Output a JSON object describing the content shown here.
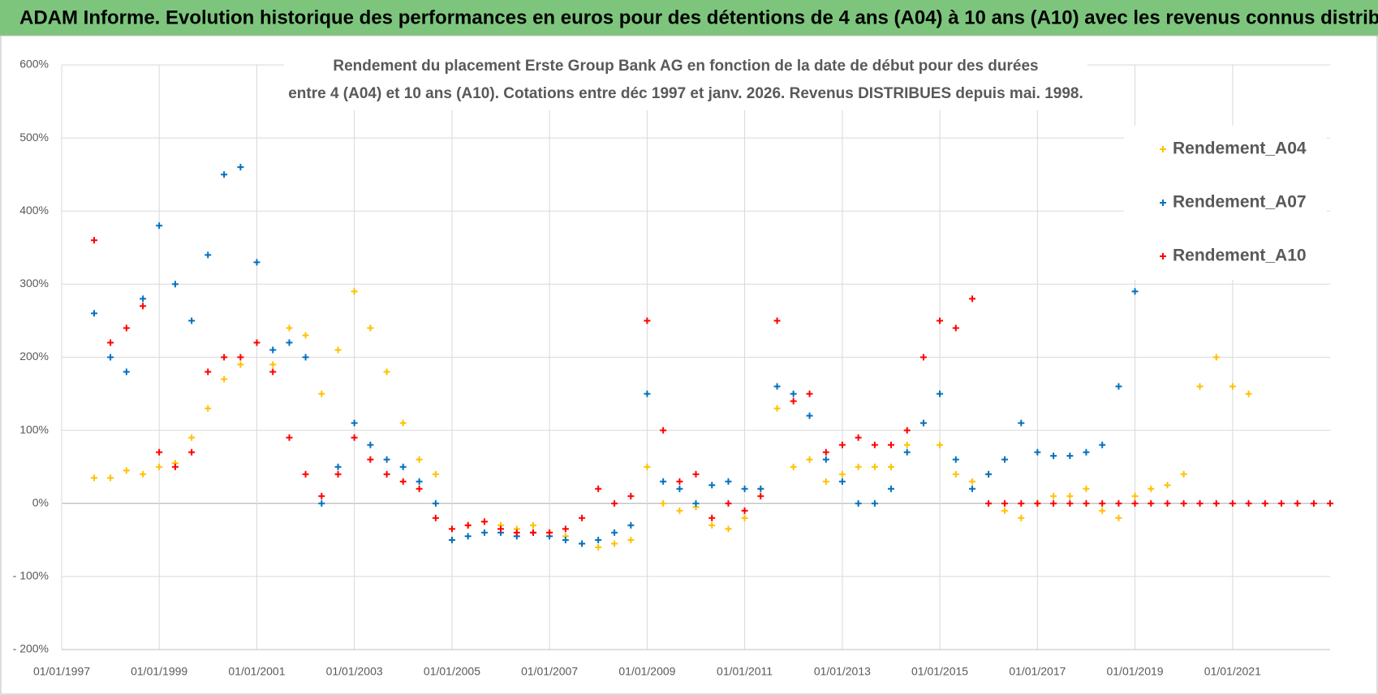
{
  "header": {
    "title": "ADAM Informe. Evolution historique des performances en euros pour des détentions de 4 ans (A04) à 10 ans (A10) avec les revenus connus distribués"
  },
  "chart_data": {
    "type": "scatter",
    "title_lines": [
      "Rendement du placement Erste Group Bank AG en fonction de la date de début pour des durées",
      "entre 4 (A04) et 10 ans (A10).  Cotations entre déc 1997 et janv. 2026.  Revenus DISTRIBUES depuis mai. 1998."
    ],
    "x": [
      "1997-09-01",
      "1998-01-01",
      "1998-05-01",
      "1998-09-01",
      "1999-01-01",
      "1999-05-01",
      "1999-09-01",
      "2000-01-01",
      "2000-05-01",
      "2000-09-01",
      "2001-01-01",
      "2001-05-01",
      "2001-09-01",
      "2002-01-01",
      "2002-05-01",
      "2002-09-01",
      "2003-01-01",
      "2003-05-01",
      "2003-09-01",
      "2004-01-01",
      "2004-05-01",
      "2004-09-01",
      "2005-01-01",
      "2005-05-01",
      "2005-09-01",
      "2006-01-01",
      "2006-05-01",
      "2006-09-01",
      "2007-01-01",
      "2007-05-01",
      "2007-09-01",
      "2008-01-01",
      "2008-05-01",
      "2008-09-01",
      "2009-01-01",
      "2009-05-01",
      "2009-09-01",
      "2010-01-01",
      "2010-05-01",
      "2010-09-01",
      "2011-01-01",
      "2011-05-01",
      "2011-09-01",
      "2012-01-01",
      "2012-05-01",
      "2012-09-01",
      "2013-01-01",
      "2013-05-01",
      "2013-09-01",
      "2014-01-01",
      "2014-05-01",
      "2014-09-01",
      "2015-01-01",
      "2015-05-01",
      "2015-09-01",
      "2016-01-01",
      "2016-05-01",
      "2016-09-01",
      "2017-01-01",
      "2017-05-01",
      "2017-09-01",
      "2018-01-01",
      "2018-05-01",
      "2018-09-01",
      "2019-01-01",
      "2019-05-01",
      "2019-09-01",
      "2020-01-01",
      "2020-05-01",
      "2020-09-01",
      "2021-01-01",
      "2021-05-01",
      "2021-09-01",
      "2022-01-01",
      "2022-05-01",
      "2022-09-01",
      "2023-01-01"
    ],
    "series": [
      {
        "name": "Rendement_A04",
        "color": "#ffc000",
        "values": [
          35,
          35,
          45,
          40,
          50,
          55,
          90,
          130,
          170,
          190,
          220,
          190,
          240,
          230,
          150,
          210,
          290,
          240,
          180,
          110,
          60,
          40,
          -50,
          -30,
          -25,
          -30,
          -35,
          -30,
          -40,
          -45,
          -55,
          -60,
          -55,
          -50,
          50,
          0,
          -10,
          -5,
          -30,
          -35,
          -20,
          20,
          130,
          50,
          60,
          30,
          40,
          50,
          50,
          50,
          80,
          110,
          80,
          40,
          30,
          40,
          -10,
          -20,
          0,
          10,
          10,
          20,
          -10,
          -20,
          10,
          20,
          25,
          40,
          160,
          200,
          160,
          150,
          null,
          null,
          null,
          null,
          null
        ]
      },
      {
        "name": "Rendement_A07",
        "color": "#0070c0",
        "values": [
          260,
          200,
          180,
          280,
          380,
          300,
          250,
          340,
          450,
          460,
          330,
          210,
          220,
          200,
          0,
          50,
          110,
          80,
          60,
          50,
          30,
          0,
          -50,
          -45,
          -40,
          -40,
          -45,
          -40,
          -45,
          -50,
          -55,
          -50,
          -40,
          -30,
          150,
          30,
          20,
          0,
          25,
          30,
          20,
          20,
          160,
          150,
          120,
          60,
          30,
          0,
          0,
          20,
          70,
          110,
          150,
          60,
          20,
          40,
          60,
          110,
          70,
          65,
          65,
          70,
          80,
          160,
          290,
          null,
          null,
          null,
          null,
          null,
          null,
          null,
          null,
          null,
          null,
          null,
          null
        ]
      },
      {
        "name": "Rendement_A10",
        "color": "#ff0000",
        "values": [
          360,
          220,
          240,
          270,
          70,
          50,
          70,
          180,
          200,
          200,
          220,
          180,
          90,
          40,
          10,
          40,
          90,
          60,
          40,
          30,
          20,
          -20,
          -35,
          -30,
          -25,
          -35,
          -40,
          -40,
          -40,
          -35,
          -20,
          20,
          0,
          10,
          250,
          100,
          30,
          40,
          -20,
          0,
          -10,
          10,
          250,
          140,
          150,
          70,
          80,
          90,
          80,
          80,
          100,
          200,
          250,
          240,
          280,
          0,
          0,
          0,
          0,
          0,
          0,
          0,
          0,
          0,
          0,
          0,
          0,
          0,
          0,
          0,
          0,
          0,
          0,
          0,
          0,
          0,
          0
        ]
      }
    ],
    "xlim": [
      "1997-01-01",
      "2023-01-01"
    ],
    "xticks": [
      {
        "value": "1997-01-01",
        "label": "01/01/1997"
      },
      {
        "value": "1999-01-01",
        "label": "01/01/1999"
      },
      {
        "value": "2001-01-01",
        "label": "01/01/2001"
      },
      {
        "value": "2003-01-01",
        "label": "01/01/2003"
      },
      {
        "value": "2005-01-01",
        "label": "01/01/2005"
      },
      {
        "value": "2007-01-01",
        "label": "01/01/2007"
      },
      {
        "value": "2009-01-01",
        "label": "01/01/2009"
      },
      {
        "value": "2011-01-01",
        "label": "01/01/2011"
      },
      {
        "value": "2013-01-01",
        "label": "01/01/2013"
      },
      {
        "value": "2015-01-01",
        "label": "01/01/2015"
      },
      {
        "value": "2017-01-01",
        "label": "01/01/2017"
      },
      {
        "value": "2019-01-01",
        "label": "01/01/2019"
      },
      {
        "value": "2021-01-01",
        "label": "01/01/2021"
      }
    ],
    "ylim": [
      -200,
      600
    ],
    "yticks": [
      {
        "value": -200,
        "label": "- 200%"
      },
      {
        "value": -100,
        "label": "- 100%"
      },
      {
        "value": 0,
        "label": "0%"
      },
      {
        "value": 100,
        "label": "100%"
      },
      {
        "value": 200,
        "label": "200%"
      },
      {
        "value": 300,
        "label": "300%"
      },
      {
        "value": 400,
        "label": "400%"
      },
      {
        "value": 500,
        "label": "500%"
      },
      {
        "value": 600,
        "label": "600%"
      }
    ],
    "grid": true,
    "legend": "upper right"
  }
}
